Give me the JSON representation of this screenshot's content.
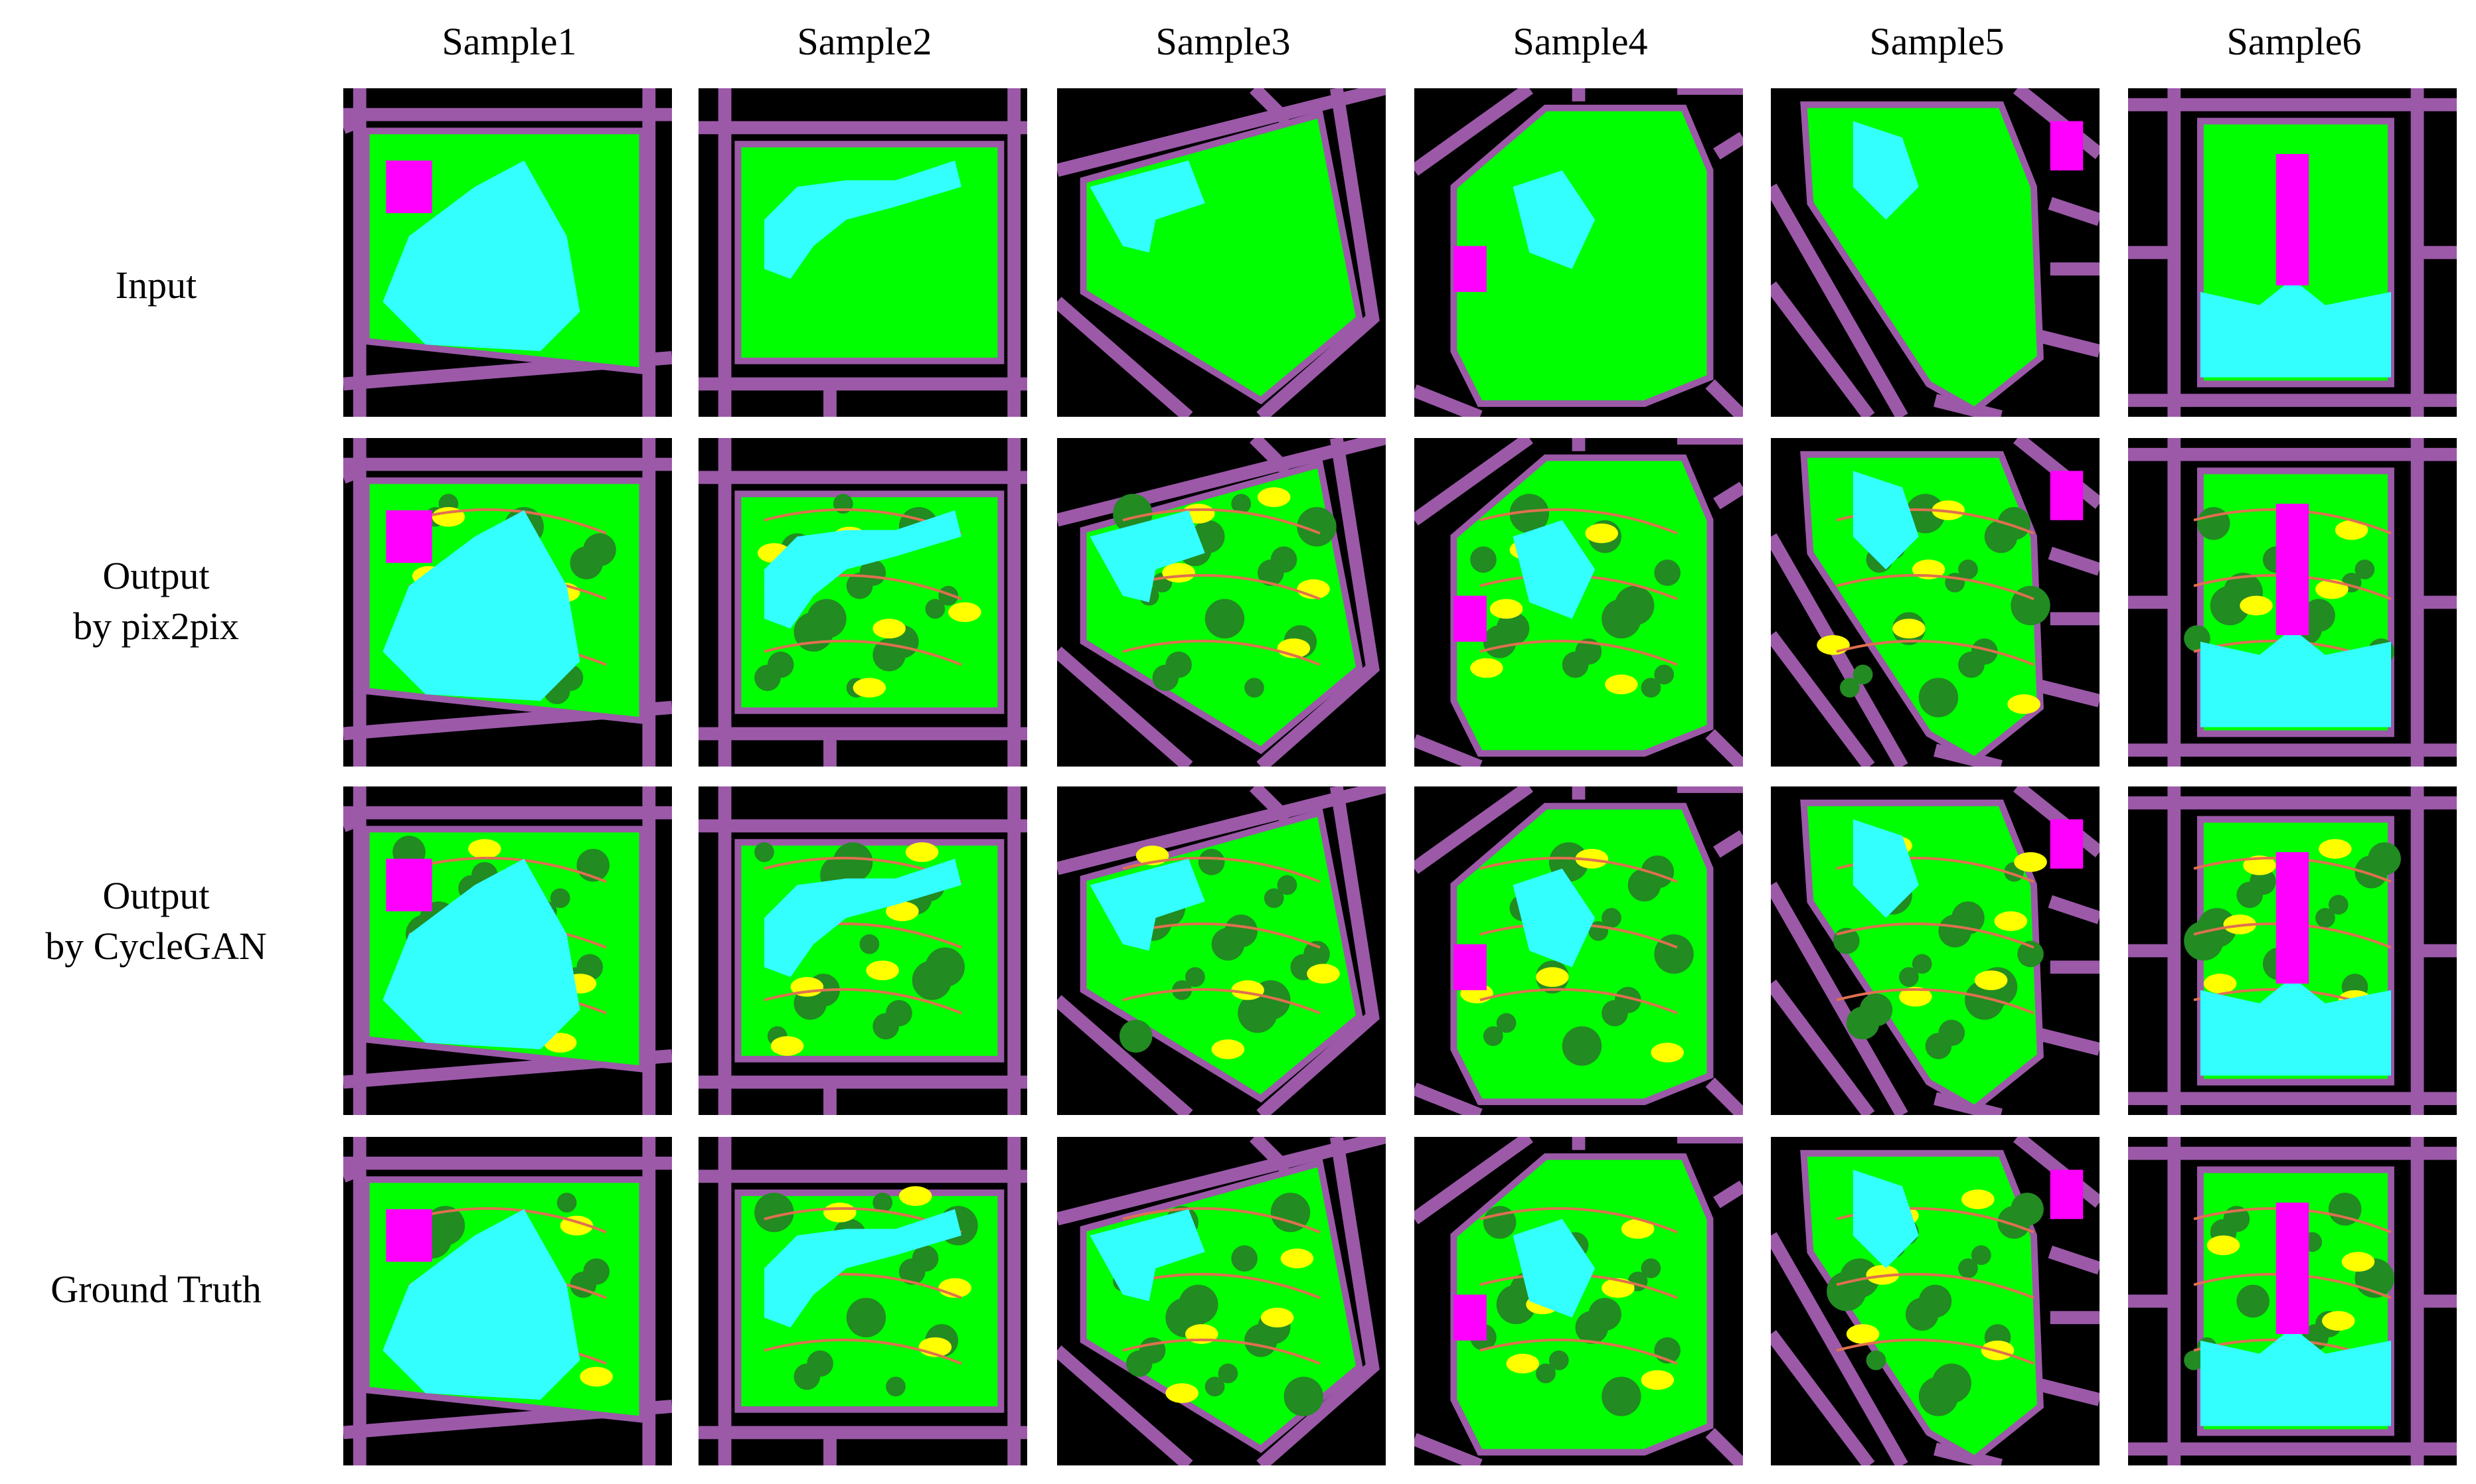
{
  "columns": [
    "Sample1",
    "Sample2",
    "Sample3",
    "Sample4",
    "Sample5",
    "Sample6"
  ],
  "rows": [
    {
      "line1": "Input",
      "line2": ""
    },
    {
      "line1": "Output",
      "line2": "by pix2pix"
    },
    {
      "line1": "Output",
      "line2": "by CycleGAN"
    },
    {
      "line1": "Ground Truth",
      "line2": ""
    }
  ],
  "palette": {
    "background": "#000000",
    "road": "#9b59a8",
    "green_space": "#00ff00",
    "dark_green": "#228b22",
    "water": "#33ffff",
    "building": "#ff00ff",
    "yellow_area": "#ffff00",
    "path": "#e07050"
  }
}
